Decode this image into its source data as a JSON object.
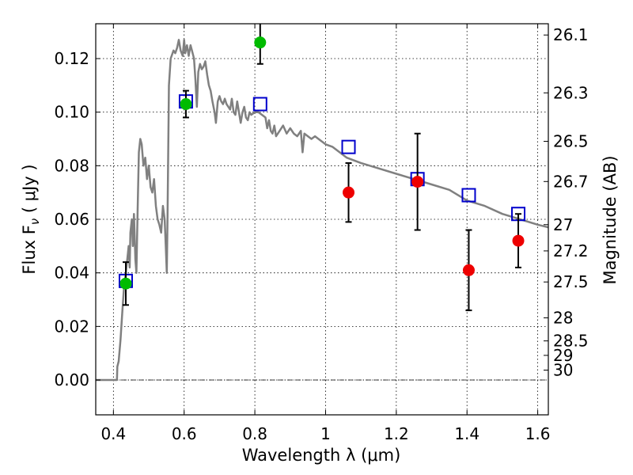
{
  "chart_data": {
    "type": "scatter",
    "xlabel": "Wavelength  λ (μm)",
    "ylabel": "Flux  F",
    "ylabel_subscript": "ν",
    "ylabel_unit": " ( μJy )",
    "y2label": "Magnitude (AB)",
    "xlim": [
      0.35,
      1.63
    ],
    "ylim": [
      -0.013,
      0.133
    ],
    "grid": true,
    "x_ticks": [
      0.4,
      0.6,
      0.8,
      1.0,
      1.2,
      1.4,
      1.6
    ],
    "x_tick_labels": [
      "0.4",
      "0.6",
      "0.8",
      "1",
      "1.2",
      "1.4",
      "1.6"
    ],
    "y_ticks": [
      0.0,
      0.02,
      0.04,
      0.06,
      0.08,
      0.1,
      0.12
    ],
    "y_tick_labels": [
      "0.00",
      "0.02",
      "0.04",
      "0.06",
      "0.08",
      "0.10",
      "0.12"
    ],
    "y2_ticks": [
      {
        "label": "26.1",
        "flux": 0.1288
      },
      {
        "label": "26.3",
        "flux": 0.1072
      },
      {
        "label": "26.5",
        "flux": 0.0891
      },
      {
        "label": "26.7",
        "flux": 0.0741
      },
      {
        "label": "27",
        "flux": 0.058
      },
      {
        "label": "27.2",
        "flux": 0.0482
      },
      {
        "label": "27.5",
        "flux": 0.0366
      },
      {
        "label": "28",
        "flux": 0.0232
      },
      {
        "label": "28.5",
        "flux": 0.0146
      },
      {
        "label": "29",
        "flux": 0.0092
      },
      {
        "label": "30",
        "flux": 0.0037
      }
    ],
    "series": [
      {
        "kind": "line",
        "color": "#808080",
        "points": [
          [
            0.35,
            0.0
          ],
          [
            0.41,
            0.0
          ],
          [
            0.411,
            0.005
          ],
          [
            0.415,
            0.007
          ],
          [
            0.42,
            0.015
          ],
          [
            0.425,
            0.025
          ],
          [
            0.43,
            0.035
          ],
          [
            0.435,
            0.04
          ],
          [
            0.44,
            0.046
          ],
          [
            0.443,
            0.05
          ],
          [
            0.446,
            0.042
          ],
          [
            0.448,
            0.055
          ],
          [
            0.452,
            0.06
          ],
          [
            0.455,
            0.05
          ],
          [
            0.458,
            0.062
          ],
          [
            0.462,
            0.045
          ],
          [
            0.465,
            0.04
          ],
          [
            0.468,
            0.06
          ],
          [
            0.472,
            0.085
          ],
          [
            0.476,
            0.09
          ],
          [
            0.48,
            0.088
          ],
          [
            0.485,
            0.08
          ],
          [
            0.49,
            0.083
          ],
          [
            0.495,
            0.075
          ],
          [
            0.5,
            0.08
          ],
          [
            0.505,
            0.072
          ],
          [
            0.51,
            0.07
          ],
          [
            0.515,
            0.075
          ],
          [
            0.52,
            0.065
          ],
          [
            0.525,
            0.06
          ],
          [
            0.53,
            0.058
          ],
          [
            0.535,
            0.055
          ],
          [
            0.54,
            0.065
          ],
          [
            0.545,
            0.06
          ],
          [
            0.548,
            0.05
          ],
          [
            0.551,
            0.04
          ],
          [
            0.553,
            0.06
          ],
          [
            0.557,
            0.11
          ],
          [
            0.562,
            0.12
          ],
          [
            0.57,
            0.123
          ],
          [
            0.575,
            0.122
          ],
          [
            0.58,
            0.124
          ],
          [
            0.585,
            0.127
          ],
          [
            0.59,
            0.123
          ],
          [
            0.596,
            0.121
          ],
          [
            0.6,
            0.127
          ],
          [
            0.603,
            0.122
          ],
          [
            0.608,
            0.125
          ],
          [
            0.613,
            0.121
          ],
          [
            0.618,
            0.125
          ],
          [
            0.622,
            0.123
          ],
          [
            0.628,
            0.12
          ],
          [
            0.632,
            0.112
          ],
          [
            0.636,
            0.102
          ],
          [
            0.64,
            0.115
          ],
          [
            0.645,
            0.118
          ],
          [
            0.65,
            0.116
          ],
          [
            0.655,
            0.117
          ],
          [
            0.66,
            0.119
          ],
          [
            0.665,
            0.114
          ],
          [
            0.67,
            0.11
          ],
          [
            0.675,
            0.108
          ],
          [
            0.68,
            0.104
          ],
          [
            0.686,
            0.1
          ],
          [
            0.69,
            0.096
          ],
          [
            0.695,
            0.104
          ],
          [
            0.7,
            0.106
          ],
          [
            0.705,
            0.104
          ],
          [
            0.71,
            0.103
          ],
          [
            0.715,
            0.105
          ],
          [
            0.72,
            0.103
          ],
          [
            0.725,
            0.102
          ],
          [
            0.73,
            0.101
          ],
          [
            0.735,
            0.105
          ],
          [
            0.74,
            0.1
          ],
          [
            0.745,
            0.099
          ],
          [
            0.75,
            0.104
          ],
          [
            0.755,
            0.1
          ],
          [
            0.76,
            0.096
          ],
          [
            0.765,
            0.1
          ],
          [
            0.77,
            0.102
          ],
          [
            0.775,
            0.098
          ],
          [
            0.78,
            0.097
          ],
          [
            0.785,
            0.1
          ],
          [
            0.79,
            0.099
          ],
          [
            0.8,
            0.1
          ],
          [
            0.81,
            0.1
          ],
          [
            0.82,
            0.099
          ],
          [
            0.83,
            0.098
          ],
          [
            0.835,
            0.094
          ],
          [
            0.84,
            0.097
          ],
          [
            0.845,
            0.093
          ],
          [
            0.85,
            0.092
          ],
          [
            0.855,
            0.095
          ],
          [
            0.86,
            0.091
          ],
          [
            0.87,
            0.093
          ],
          [
            0.88,
            0.095
          ],
          [
            0.89,
            0.092
          ],
          [
            0.9,
            0.094
          ],
          [
            0.91,
            0.092
          ],
          [
            0.92,
            0.091
          ],
          [
            0.93,
            0.093
          ],
          [
            0.935,
            0.085
          ],
          [
            0.94,
            0.092
          ],
          [
            0.95,
            0.091
          ],
          [
            0.96,
            0.09
          ],
          [
            0.97,
            0.091
          ],
          [
            0.98,
            0.09
          ],
          [
            0.99,
            0.089
          ],
          [
            1.0,
            0.088
          ],
          [
            1.02,
            0.087
          ],
          [
            1.04,
            0.085
          ],
          [
            1.06,
            0.083
          ],
          [
            1.08,
            0.082
          ],
          [
            1.1,
            0.081
          ],
          [
            1.15,
            0.079
          ],
          [
            1.2,
            0.077
          ],
          [
            1.25,
            0.075
          ],
          [
            1.3,
            0.073
          ],
          [
            1.35,
            0.071
          ],
          [
            1.4,
            0.067
          ],
          [
            1.45,
            0.065
          ],
          [
            1.5,
            0.062
          ],
          [
            1.55,
            0.06
          ],
          [
            1.6,
            0.058
          ],
          [
            1.63,
            0.057
          ]
        ]
      },
      {
        "kind": "open-square",
        "color": "#0000cc",
        "x": [
          0.435,
          0.605,
          0.815,
          1.065,
          1.26,
          1.405,
          1.545
        ],
        "y": [
          0.037,
          0.104,
          0.103,
          0.087,
          0.075,
          0.069,
          0.062
        ]
      },
      {
        "kind": "filled-circle",
        "color": "#00bb00",
        "x": [
          0.435,
          0.605,
          0.815
        ],
        "y": [
          0.036,
          0.103,
          0.126
        ],
        "err": [
          0.008,
          0.005,
          0.008
        ]
      },
      {
        "kind": "filled-circle",
        "color": "#ee0000",
        "x": [
          1.065,
          1.26,
          1.405,
          1.545
        ],
        "y": [
          0.07,
          0.074,
          0.041,
          0.052
        ],
        "err": [
          0.011,
          0.018,
          0.015,
          0.01
        ]
      }
    ]
  }
}
